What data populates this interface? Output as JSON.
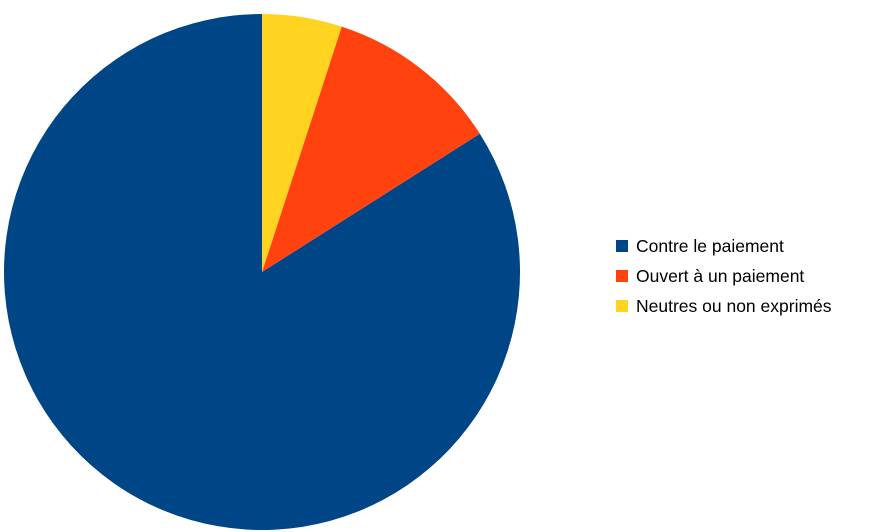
{
  "chart_data": {
    "type": "pie",
    "categories": [
      "Contre le paiement",
      "Ouvert à un paiement",
      "Neutres ou non exprimés"
    ],
    "values": [
      84,
      11,
      5
    ],
    "colors": [
      "#004586",
      "#ff420e",
      "#ffd320"
    ],
    "start_angle": "top",
    "direction": "counterclockwise",
    "legend_position": "right",
    "title": ""
  }
}
